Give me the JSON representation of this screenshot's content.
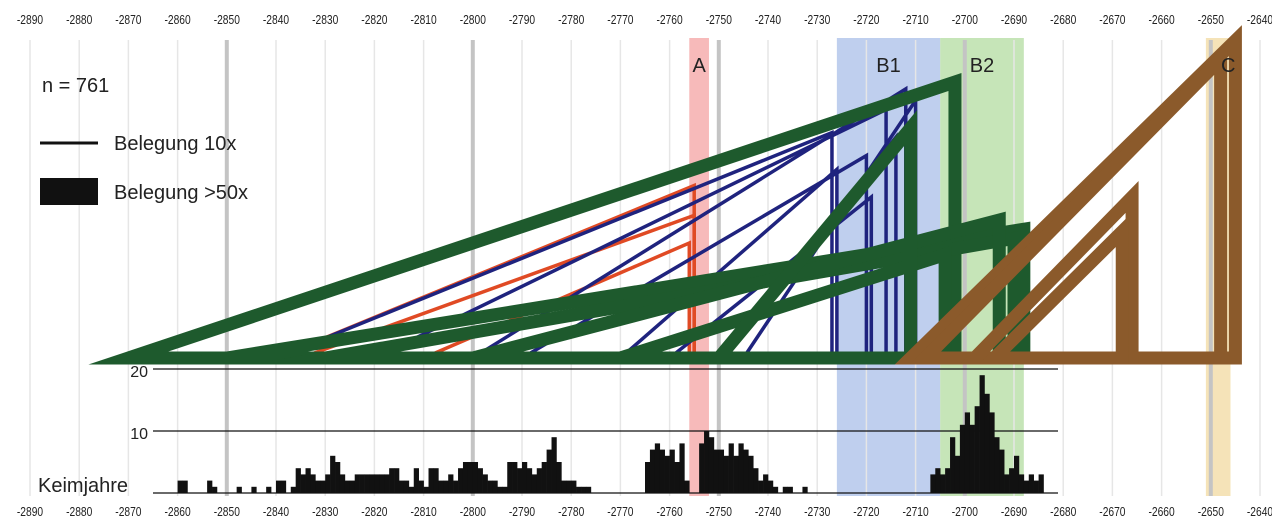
{
  "chart_data": {
    "type": "diagram-with-histogram",
    "n_label": "n = 761",
    "legend": [
      {
        "label": "Belegung 10x",
        "marker": "thin-line"
      },
      {
        "label": "Belegung >50x",
        "marker": "thick-band"
      }
    ],
    "x_ticks": [
      -2890,
      -2880,
      -2870,
      -2860,
      -2850,
      -2840,
      -2830,
      -2820,
      -2810,
      -2800,
      -2790,
      -2780,
      -2770,
      -2760,
      -2750,
      -2740,
      -2730,
      -2720,
      -2710,
      -2700,
      -2690,
      -2680,
      -2670,
      -2660,
      -2650,
      -2640
    ],
    "xlim": [
      -2890,
      -2640
    ],
    "zones": [
      {
        "label": "A",
        "from": -2756,
        "to": -2752,
        "color": "#f4a3a3"
      },
      {
        "label": "B1",
        "from": -2726,
        "to": -2705,
        "color": "#a9bfe8"
      },
      {
        "label": "B2",
        "from": -2705,
        "to": -2688,
        "color": "#b3dca0"
      },
      {
        "label": "C",
        "from": -2651,
        "to": -2646,
        "color": "#f2d9a0"
      }
    ],
    "highlight_years": [
      -2850,
      -2800,
      -2750,
      -2700,
      -2650
    ],
    "wedge_groups": [
      {
        "color": "#e04a24",
        "thickness": "thin",
        "lines": [
          {
            "start": -2840,
            "end": -2755,
            "top": 0.75
          },
          {
            "start": -2835,
            "end": -2755,
            "top": 0.62
          },
          {
            "start": -2810,
            "end": -2756,
            "top": 0.5
          }
        ]
      },
      {
        "color": "#1f237e",
        "thickness": "thin",
        "lines": [
          {
            "start": -2840,
            "end": -2727,
            "top": 0.98
          },
          {
            "start": -2820,
            "end": -2716,
            "top": 1.08
          },
          {
            "start": -2800,
            "end": -2712,
            "top": 1.17
          },
          {
            "start": -2790,
            "end": -2720,
            "top": 0.88
          },
          {
            "start": -2770,
            "end": -2726,
            "top": 0.82
          },
          {
            "start": -2760,
            "end": -2719,
            "top": 0.7
          },
          {
            "start": -2750,
            "end": -2714,
            "top": 0.96
          },
          {
            "start": -2745,
            "end": -2710,
            "top": 1.12
          }
        ]
      },
      {
        "color": "#1e5a2d",
        "thickness": "thick",
        "lines": [
          {
            "start": -2870,
            "end": -2702,
            "top": 1.2
          },
          {
            "start": -2850,
            "end": -2688,
            "top": 0.56
          },
          {
            "start": -2830,
            "end": -2690,
            "top": 0.52
          },
          {
            "start": -2800,
            "end": -2693,
            "top": 0.6
          },
          {
            "start": -2770,
            "end": -2704,
            "top": 0.45
          },
          {
            "start": -2750,
            "end": -2711,
            "top": 1.0
          }
        ]
      },
      {
        "color": "#8b5a2b",
        "thickness": "thick",
        "lines": [
          {
            "start": -2711,
            "end": -2645,
            "top": 1.38
          },
          {
            "start": -2708,
            "end": -2648,
            "top": 1.3
          },
          {
            "start": -2698,
            "end": -2666,
            "top": 0.7
          },
          {
            "start": -2694,
            "end": -2668,
            "top": 0.55
          }
        ]
      }
    ],
    "histogram": {
      "label": "Keimjahre",
      "y_ticks": [
        10,
        20
      ],
      "ylim": [
        0,
        20
      ],
      "bars": [
        {
          "x": -2860,
          "v": 2
        },
        {
          "x": -2859,
          "v": 2
        },
        {
          "x": -2854,
          "v": 2
        },
        {
          "x": -2853,
          "v": 1
        },
        {
          "x": -2848,
          "v": 1
        },
        {
          "x": -2845,
          "v": 1
        },
        {
          "x": -2842,
          "v": 1
        },
        {
          "x": -2840,
          "v": 2
        },
        {
          "x": -2839,
          "v": 2
        },
        {
          "x": -2837,
          "v": 1
        },
        {
          "x": -2836,
          "v": 4
        },
        {
          "x": -2835,
          "v": 3
        },
        {
          "x": -2834,
          "v": 4
        },
        {
          "x": -2833,
          "v": 3
        },
        {
          "x": -2832,
          "v": 2
        },
        {
          "x": -2831,
          "v": 2
        },
        {
          "x": -2830,
          "v": 3
        },
        {
          "x": -2829,
          "v": 6
        },
        {
          "x": -2828,
          "v": 5
        },
        {
          "x": -2827,
          "v": 3
        },
        {
          "x": -2826,
          "v": 2
        },
        {
          "x": -2825,
          "v": 2
        },
        {
          "x": -2824,
          "v": 3
        },
        {
          "x": -2823,
          "v": 3
        },
        {
          "x": -2822,
          "v": 3
        },
        {
          "x": -2821,
          "v": 3
        },
        {
          "x": -2820,
          "v": 3
        },
        {
          "x": -2819,
          "v": 3
        },
        {
          "x": -2818,
          "v": 3
        },
        {
          "x": -2817,
          "v": 4
        },
        {
          "x": -2816,
          "v": 4
        },
        {
          "x": -2815,
          "v": 2
        },
        {
          "x": -2814,
          "v": 2
        },
        {
          "x": -2813,
          "v": 1
        },
        {
          "x": -2812,
          "v": 4
        },
        {
          "x": -2811,
          "v": 2
        },
        {
          "x": -2810,
          "v": 1
        },
        {
          "x": -2809,
          "v": 4
        },
        {
          "x": -2808,
          "v": 4
        },
        {
          "x": -2807,
          "v": 2
        },
        {
          "x": -2806,
          "v": 2
        },
        {
          "x": -2805,
          "v": 3
        },
        {
          "x": -2804,
          "v": 2
        },
        {
          "x": -2803,
          "v": 4
        },
        {
          "x": -2802,
          "v": 5
        },
        {
          "x": -2801,
          "v": 5
        },
        {
          "x": -2800,
          "v": 5
        },
        {
          "x": -2799,
          "v": 4
        },
        {
          "x": -2798,
          "v": 3
        },
        {
          "x": -2797,
          "v": 2
        },
        {
          "x": -2796,
          "v": 2
        },
        {
          "x": -2795,
          "v": 1
        },
        {
          "x": -2794,
          "v": 1
        },
        {
          "x": -2793,
          "v": 5
        },
        {
          "x": -2792,
          "v": 5
        },
        {
          "x": -2791,
          "v": 4
        },
        {
          "x": -2790,
          "v": 5
        },
        {
          "x": -2789,
          "v": 4
        },
        {
          "x": -2788,
          "v": 3
        },
        {
          "x": -2787,
          "v": 4
        },
        {
          "x": -2786,
          "v": 5
        },
        {
          "x": -2785,
          "v": 7
        },
        {
          "x": -2784,
          "v": 9
        },
        {
          "x": -2783,
          "v": 5
        },
        {
          "x": -2782,
          "v": 2
        },
        {
          "x": -2781,
          "v": 2
        },
        {
          "x": -2780,
          "v": 2
        },
        {
          "x": -2779,
          "v": 1
        },
        {
          "x": -2778,
          "v": 1
        },
        {
          "x": -2777,
          "v": 1
        },
        {
          "x": -2765,
          "v": 5
        },
        {
          "x": -2764,
          "v": 7
        },
        {
          "x": -2763,
          "v": 8
        },
        {
          "x": -2762,
          "v": 7
        },
        {
          "x": -2761,
          "v": 6
        },
        {
          "x": -2760,
          "v": 7
        },
        {
          "x": -2759,
          "v": 5
        },
        {
          "x": -2758,
          "v": 8
        },
        {
          "x": -2757,
          "v": 2
        },
        {
          "x": -2754,
          "v": 8
        },
        {
          "x": -2753,
          "v": 10
        },
        {
          "x": -2752,
          "v": 9
        },
        {
          "x": -2751,
          "v": 7
        },
        {
          "x": -2750,
          "v": 7
        },
        {
          "x": -2749,
          "v": 6
        },
        {
          "x": -2748,
          "v": 8
        },
        {
          "x": -2747,
          "v": 6
        },
        {
          "x": -2746,
          "v": 8
        },
        {
          "x": -2745,
          "v": 7
        },
        {
          "x": -2744,
          "v": 6
        },
        {
          "x": -2743,
          "v": 4
        },
        {
          "x": -2742,
          "v": 2
        },
        {
          "x": -2741,
          "v": 3
        },
        {
          "x": -2740,
          "v": 2
        },
        {
          "x": -2739,
          "v": 1
        },
        {
          "x": -2737,
          "v": 1
        },
        {
          "x": -2736,
          "v": 1
        },
        {
          "x": -2733,
          "v": 1
        },
        {
          "x": -2707,
          "v": 3
        },
        {
          "x": -2706,
          "v": 4
        },
        {
          "x": -2705,
          "v": 3
        },
        {
          "x": -2704,
          "v": 4
        },
        {
          "x": -2703,
          "v": 9
        },
        {
          "x": -2702,
          "v": 6
        },
        {
          "x": -2701,
          "v": 11
        },
        {
          "x": -2700,
          "v": 13
        },
        {
          "x": -2699,
          "v": 11
        },
        {
          "x": -2698,
          "v": 14
        },
        {
          "x": -2697,
          "v": 19
        },
        {
          "x": -2696,
          "v": 16
        },
        {
          "x": -2695,
          "v": 13
        },
        {
          "x": -2694,
          "v": 9
        },
        {
          "x": -2693,
          "v": 7
        },
        {
          "x": -2692,
          "v": 3
        },
        {
          "x": -2691,
          "v": 4
        },
        {
          "x": -2690,
          "v": 6
        },
        {
          "x": -2689,
          "v": 3
        },
        {
          "x": -2688,
          "v": 2
        },
        {
          "x": -2687,
          "v": 3
        },
        {
          "x": -2686,
          "v": 2
        },
        {
          "x": -2685,
          "v": 3
        }
      ]
    }
  }
}
